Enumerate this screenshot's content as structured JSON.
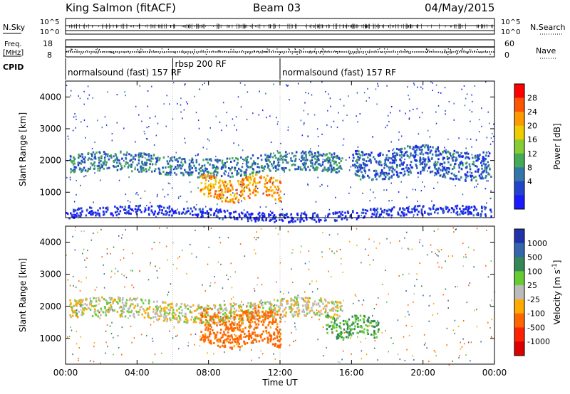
{
  "header": {
    "station": "King Salmon (fitACF)",
    "beam": "Beam 03",
    "date": "04/May/2015"
  },
  "summary": {
    "nsky_label": "N.Sky",
    "nsearch_label": "N.Search",
    "freq_label_1": "Freq.",
    "freq_label_2": "[MHz]",
    "nave_label": "Nave",
    "cpid_label": "CPID",
    "noise_left_ticks": [
      "10^5",
      "10^0"
    ],
    "noise_right_ticks": [
      "10^5",
      "10^0"
    ],
    "freq_ticks": [
      "18",
      "8"
    ],
    "nave_ticks": [
      "60",
      "0"
    ],
    "cpid_segments": [
      {
        "label": "normalsound (fast) 157 RF",
        "start": 0,
        "end": 6
      },
      {
        "label": "rbsp 200 RF",
        "start": 6,
        "end": 12
      },
      {
        "label": "normalsound (fast) 157 RF",
        "start": 12,
        "end": 24
      }
    ]
  },
  "chart_data": [
    {
      "type": "heatmap",
      "name": "power",
      "ylabel": "Slant Range [km]",
      "xlabel": "",
      "xlim": [
        0,
        24
      ],
      "ylim": [
        200,
        4500
      ],
      "yticks": [
        1000,
        2000,
        3000,
        4000
      ],
      "colorbar": {
        "label": "Power [dB]",
        "ticks": [
          "4",
          "8",
          "12",
          "16",
          "20",
          "24",
          "28"
        ],
        "colors": [
          "#1a1aff",
          "#2244cc",
          "#3377aa",
          "#44aa55",
          "#88cc33",
          "#eecc00",
          "#ff9900",
          "#ff5500",
          "#ff0000"
        ]
      },
      "features": [
        {
          "region": "sea/ground scatter band",
          "t_start": 0.2,
          "t_end": 15.5,
          "range_km": [
            1600,
            2200
          ],
          "power_db": 10
        },
        {
          "region": "bright ionospheric echo",
          "t_start": 7.5,
          "t_end": 12.0,
          "range_km": [
            800,
            1500
          ],
          "power_db": 26
        },
        {
          "region": "late scatter",
          "t_start": 16.0,
          "t_end": 23.8,
          "range_km": [
            1500,
            2400
          ],
          "power_db": 8
        },
        {
          "region": "near-range clutter",
          "t_start": 0,
          "t_end": 24,
          "range_km": [
            200,
            500
          ],
          "power_db": 4
        }
      ]
    },
    {
      "type": "heatmap",
      "name": "velocity",
      "ylabel": "Slant Range [km]",
      "xlabel": "Time UT",
      "xlim": [
        0,
        24
      ],
      "ylim": [
        200,
        4500
      ],
      "yticks": [
        1000,
        2000,
        3000,
        4000
      ],
      "xticks": [
        "00:00",
        "04:00",
        "08:00",
        "12:00",
        "16:00",
        "20:00",
        "00:00"
      ],
      "colorbar": {
        "label_prefix": "Velocity [m s",
        "label_sup": "-1",
        "label_suffix": "]",
        "ticks": [
          "1000",
          "500",
          "100",
          "25",
          "-25",
          "-100",
          "-500",
          "-1000"
        ],
        "colors": [
          "#2233aa",
          "#3366aa",
          "#338855",
          "#66cc33",
          "#bbbbbb",
          "#ffaa00",
          "#ff6600",
          "#ff2200",
          "#dd0000"
        ]
      },
      "features": [
        {
          "region": "ground scatter (grey)",
          "t_start": 0.2,
          "t_end": 15.5,
          "range_km": [
            1600,
            2200
          ],
          "velocity": 0
        },
        {
          "region": "away flow",
          "t_start": 7.5,
          "t_end": 12.0,
          "range_km": [
            800,
            1900
          ],
          "velocity": -200
        },
        {
          "region": "toward flow",
          "t_start": 14.5,
          "t_end": 17.5,
          "range_km": [
            1100,
            1700
          ],
          "velocity": 100
        }
      ]
    }
  ]
}
